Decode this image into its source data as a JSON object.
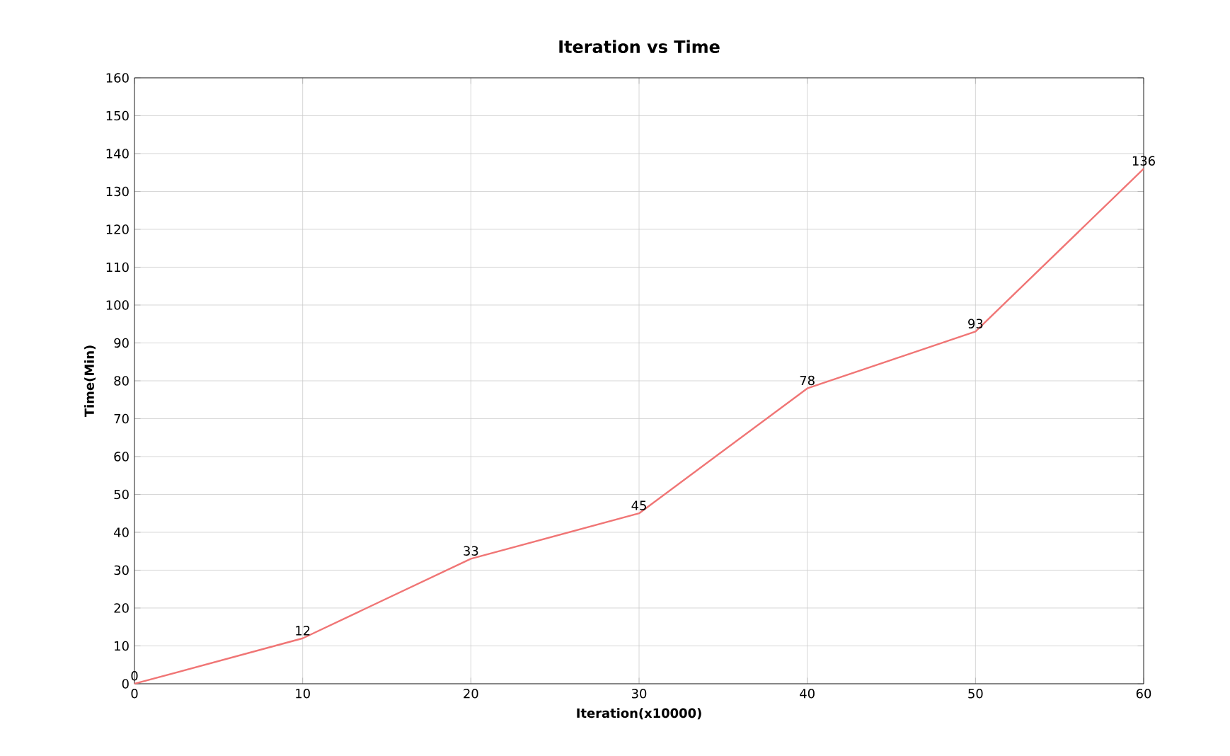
{
  "chart_data": {
    "type": "line",
    "title": "Iteration vs Time",
    "xlabel": "Iteration(x10000)",
    "ylabel": "Time(Min)",
    "x": [
      0,
      10,
      20,
      30,
      40,
      50,
      60
    ],
    "values": [
      0,
      12,
      33,
      45,
      78,
      93,
      136
    ],
    "color": "#f07575",
    "xlim": [
      0,
      60
    ],
    "ylim": [
      0,
      160
    ],
    "xticks": [
      0,
      10,
      20,
      30,
      40,
      50,
      60
    ],
    "yticks": [
      0,
      10,
      20,
      30,
      40,
      50,
      60,
      70,
      80,
      90,
      100,
      110,
      120,
      130,
      140,
      150,
      160
    ],
    "grid": true,
    "data_labels": true
  }
}
